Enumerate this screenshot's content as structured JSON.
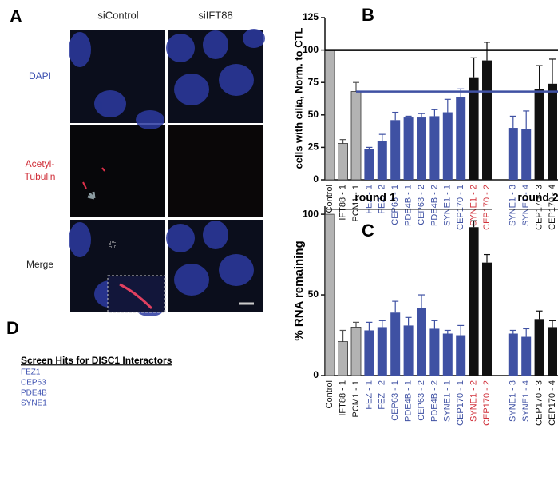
{
  "panel_labels": [
    "A",
    "B",
    "C",
    "D"
  ],
  "microscopy": {
    "columns": [
      "siControl",
      "siIFT88"
    ],
    "rows": [
      [
        "DAPI"
      ],
      [
        "Acetyl-",
        "Tubulin"
      ],
      [
        "Merge"
      ]
    ],
    "row_colors": [
      "#3b4fb0",
      "#d0303a",
      "#222222"
    ]
  },
  "chart_data": [
    {
      "type": "bar",
      "y_label": "cells with cilia, Norm. to CTL",
      "categories": [
        "Control",
        "IFT88 - 1",
        "PCM1 - 1",
        "FEZ - 1",
        "FEZ - 2",
        "CEP63 - 1",
        "PDE4B - 1",
        "CEP63 - 2",
        "PDE4B - 2",
        "SYNE1 - 1",
        "CEP170 - 1",
        "SYNE1 - 2",
        "CEP170 - 2",
        null,
        "SYNE1 - 3",
        "SYNE1 - 4",
        "CEP170 - 3",
        "CEP170 - 4"
      ],
      "values": [
        100,
        28,
        68,
        24,
        30,
        46,
        48,
        48,
        49,
        52,
        64,
        79,
        92,
        null,
        40,
        39,
        70,
        74
      ],
      "errors": [
        null,
        3,
        7,
        1,
        5,
        6,
        1,
        3,
        5,
        10,
        6,
        15,
        14,
        null,
        9,
        14,
        18,
        19
      ],
      "colors": [
        "#b3b3b3",
        "#b3b3b3",
        "#b3b3b3",
        "#3f51a3",
        "#3f51a3",
        "#3f51a3",
        "#3f51a3",
        "#3f51a3",
        "#3f51a3",
        "#3f51a3",
        "#3f51a3",
        "#111111",
        "#111111",
        null,
        "#3f51a3",
        "#3f51a3",
        "#111111",
        "#111111"
      ],
      "label_colors": [
        "#111111",
        "#111111",
        "#111111",
        "#3f51a3",
        "#3f51a3",
        "#3f51a3",
        "#3f51a3",
        "#3f51a3",
        "#3f51a3",
        "#3f51a3",
        "#3f51a3",
        "#d0303a",
        "#d0303a",
        null,
        "#3f51a3",
        "#3f51a3",
        "#111111",
        "#111111"
      ],
      "ylim": [
        0,
        125
      ],
      "yticks": [
        0,
        25,
        50,
        75,
        100,
        125
      ],
      "reference_lines": [
        {
          "value": 100,
          "color": "#000000"
        },
        {
          "value": 68,
          "color": "#3f51a3"
        }
      ]
    },
    {
      "type": "bar",
      "y_label": "% RNA remaining",
      "categories": [
        "Control",
        "IFT88 - 1",
        "PCM1 - 1",
        "FEZ - 1",
        "FEZ - 2",
        "CEP63 - 1",
        "PDE4B - 1",
        "CEP63 - 2",
        "PDE4B - 2",
        "SYNE1 - 1",
        "CEP170 - 1",
        "SYNE1 - 2",
        "CEP170 - 2",
        null,
        "SYNE1 - 3",
        "SYNE1 - 4",
        "CEP170 - 3",
        "CEP170 - 4"
      ],
      "values": [
        100,
        21,
        30,
        28,
        30,
        39,
        31,
        42,
        29,
        26,
        25,
        92,
        70,
        null,
        26,
        24,
        35,
        30
      ],
      "errors": [
        null,
        7,
        3,
        5,
        4,
        7,
        5,
        8,
        5,
        2,
        6,
        4,
        5,
        null,
        2,
        5,
        5,
        4
      ],
      "colors": [
        "#b3b3b3",
        "#b3b3b3",
        "#b3b3b3",
        "#3f51a3",
        "#3f51a3",
        "#3f51a3",
        "#3f51a3",
        "#3f51a3",
        "#3f51a3",
        "#3f51a3",
        "#3f51a3",
        "#111111",
        "#111111",
        null,
        "#3f51a3",
        "#3f51a3",
        "#111111",
        "#111111"
      ],
      "label_colors": [
        "#111111",
        "#111111",
        "#111111",
        "#3f51a3",
        "#3f51a3",
        "#3f51a3",
        "#3f51a3",
        "#3f51a3",
        "#3f51a3",
        "#3f51a3",
        "#3f51a3",
        "#d0303a",
        "#d0303a",
        null,
        "#3f51a3",
        "#3f51a3",
        "#111111",
        "#111111"
      ],
      "ylim": [
        0,
        105
      ],
      "yticks": [
        0,
        50,
        100
      ],
      "groups": [
        "round 1",
        "round 2"
      ]
    }
  ],
  "list": {
    "title": "Screen Hits for DISC1 Interactors",
    "items": [
      "FEZ1",
      "CEP63",
      "PDE4B",
      "SYNE1"
    ],
    "item_color": "#3b4fb0"
  }
}
